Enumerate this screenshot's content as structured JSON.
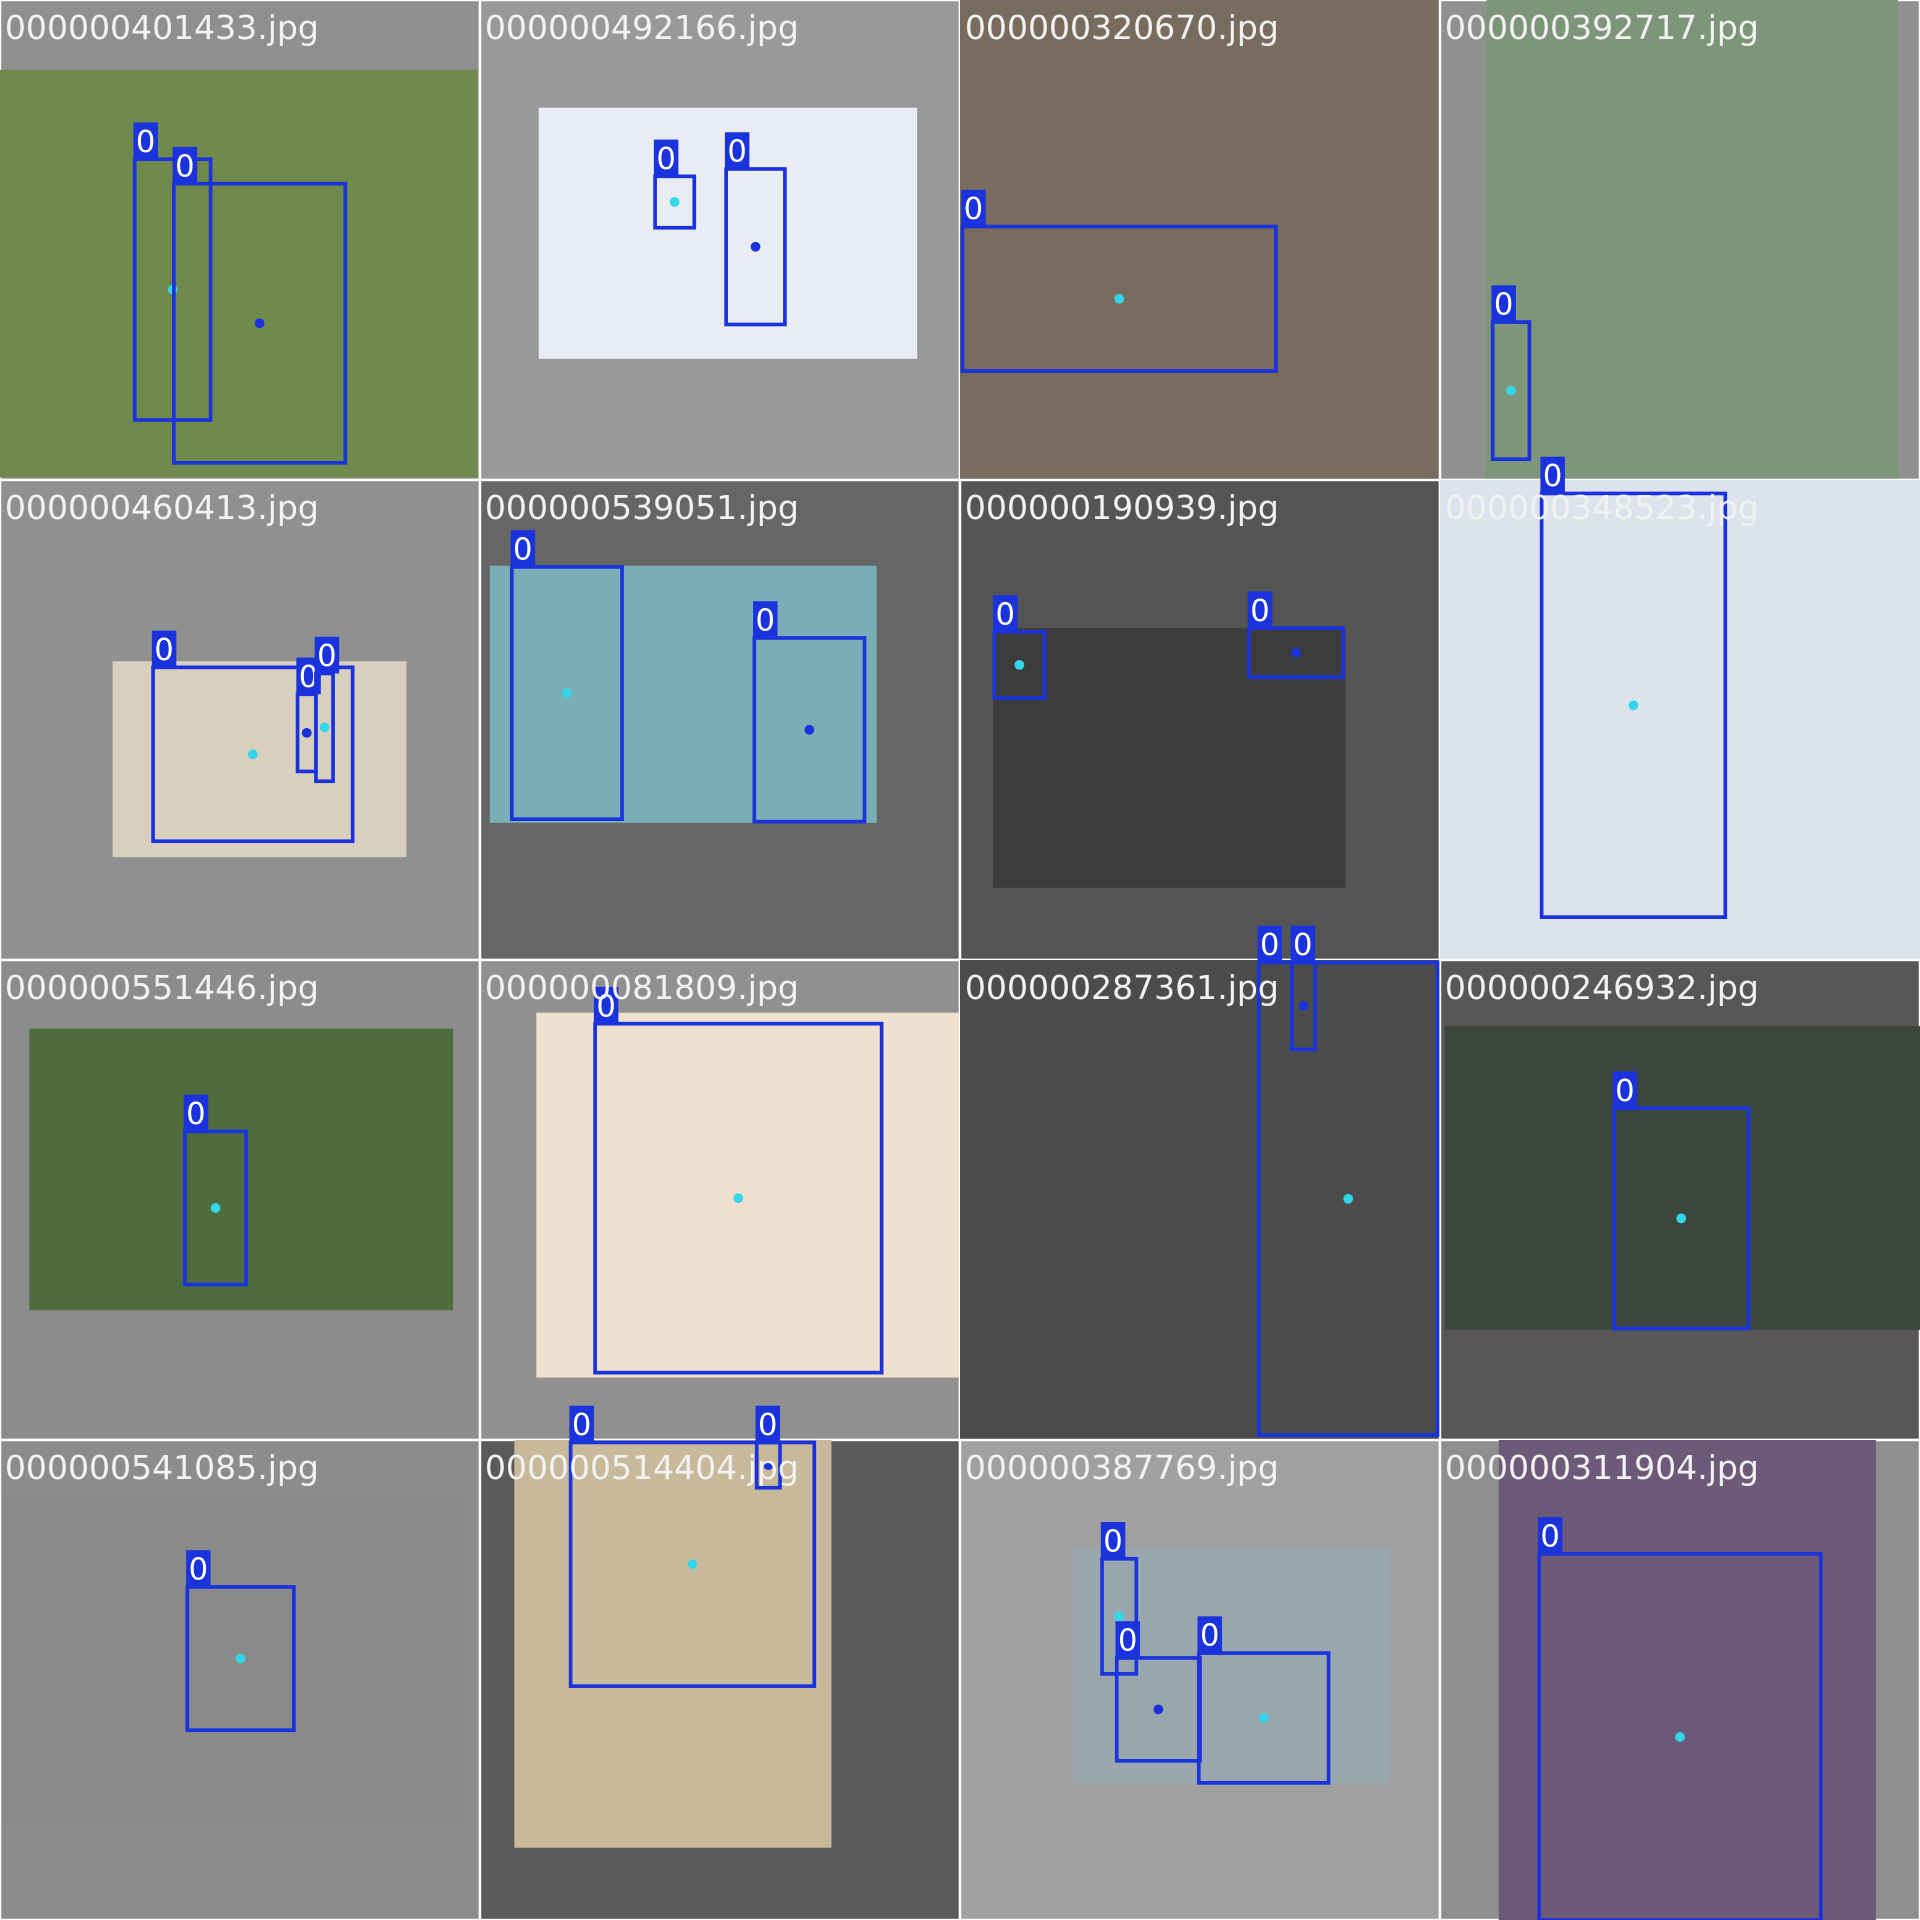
{
  "tiles": [
    {
      "file": "000000401433.jpg",
      "labels": [
        "0",
        "0"
      ]
    },
    {
      "file": "000000492166.jpg",
      "labels": [
        "0",
        "0"
      ]
    },
    {
      "file": "000000320670.jpg",
      "labels": [
        "0"
      ]
    },
    {
      "file": "000000392717.jpg",
      "labels": [
        "0"
      ]
    },
    {
      "file": "000000460413.jpg",
      "labels": [
        "0",
        "0",
        "0"
      ]
    },
    {
      "file": "000000539051.jpg",
      "labels": [
        "0",
        "0"
      ]
    },
    {
      "file": "000000190939.jpg",
      "labels": [
        "0",
        "0"
      ]
    },
    {
      "file": "000000348523.jpg",
      "labels": [
        "0"
      ]
    },
    {
      "file": "000000551446.jpg",
      "labels": [
        "0"
      ]
    },
    {
      "file": "000000081809.jpg",
      "labels": [
        "0"
      ]
    },
    {
      "file": "000000287361.jpg",
      "labels": [
        "0",
        "0"
      ]
    },
    {
      "file": "000000246932.jpg",
      "labels": [
        "0"
      ]
    },
    {
      "file": "000000541085.jpg",
      "labels": [
        "0"
      ]
    },
    {
      "file": "000000514404.jpg",
      "labels": [
        "0",
        "0"
      ]
    },
    {
      "file": "000000387769.jpg",
      "labels": [
        "0",
        "0",
        "0"
      ]
    },
    {
      "file": "000000311904.jpg",
      "labels": [
        "0"
      ]
    }
  ]
}
